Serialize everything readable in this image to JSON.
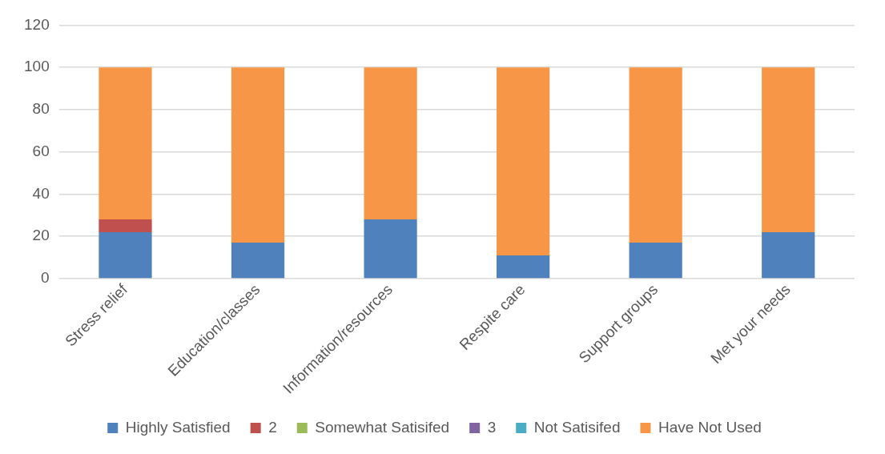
{
  "chart_data": {
    "type": "bar",
    "stacked": true,
    "categories": [
      "Stress relief",
      "Education/classes",
      "Information/resources",
      "Respite care",
      "Support groups",
      "Met your needs"
    ],
    "series": [
      {
        "name": "Highly Satisfied",
        "color": "#4f81bd",
        "values": [
          22,
          17,
          28,
          11,
          17,
          22
        ]
      },
      {
        "name": "2",
        "color": "#c0504d",
        "values": [
          6,
          0,
          0,
          0,
          0,
          0
        ]
      },
      {
        "name": "Somewhat Satisifed",
        "color": "#9bbb59",
        "values": [
          0,
          0,
          0,
          0,
          0,
          0
        ]
      },
      {
        "name": "3",
        "color": "#8064a2",
        "values": [
          0,
          0,
          0,
          0,
          0,
          0
        ]
      },
      {
        "name": "Not Satisifed",
        "color": "#4bacc6",
        "values": [
          0,
          0,
          0,
          0,
          0,
          0
        ]
      },
      {
        "name": "Have Not Used",
        "color": "#f79646",
        "values": [
          72,
          83,
          72,
          89,
          83,
          78
        ]
      }
    ],
    "ylim": [
      0,
      120
    ],
    "yticks": [
      0,
      20,
      40,
      60,
      80,
      100,
      120
    ],
    "grid": "y",
    "legend": "bottom"
  }
}
